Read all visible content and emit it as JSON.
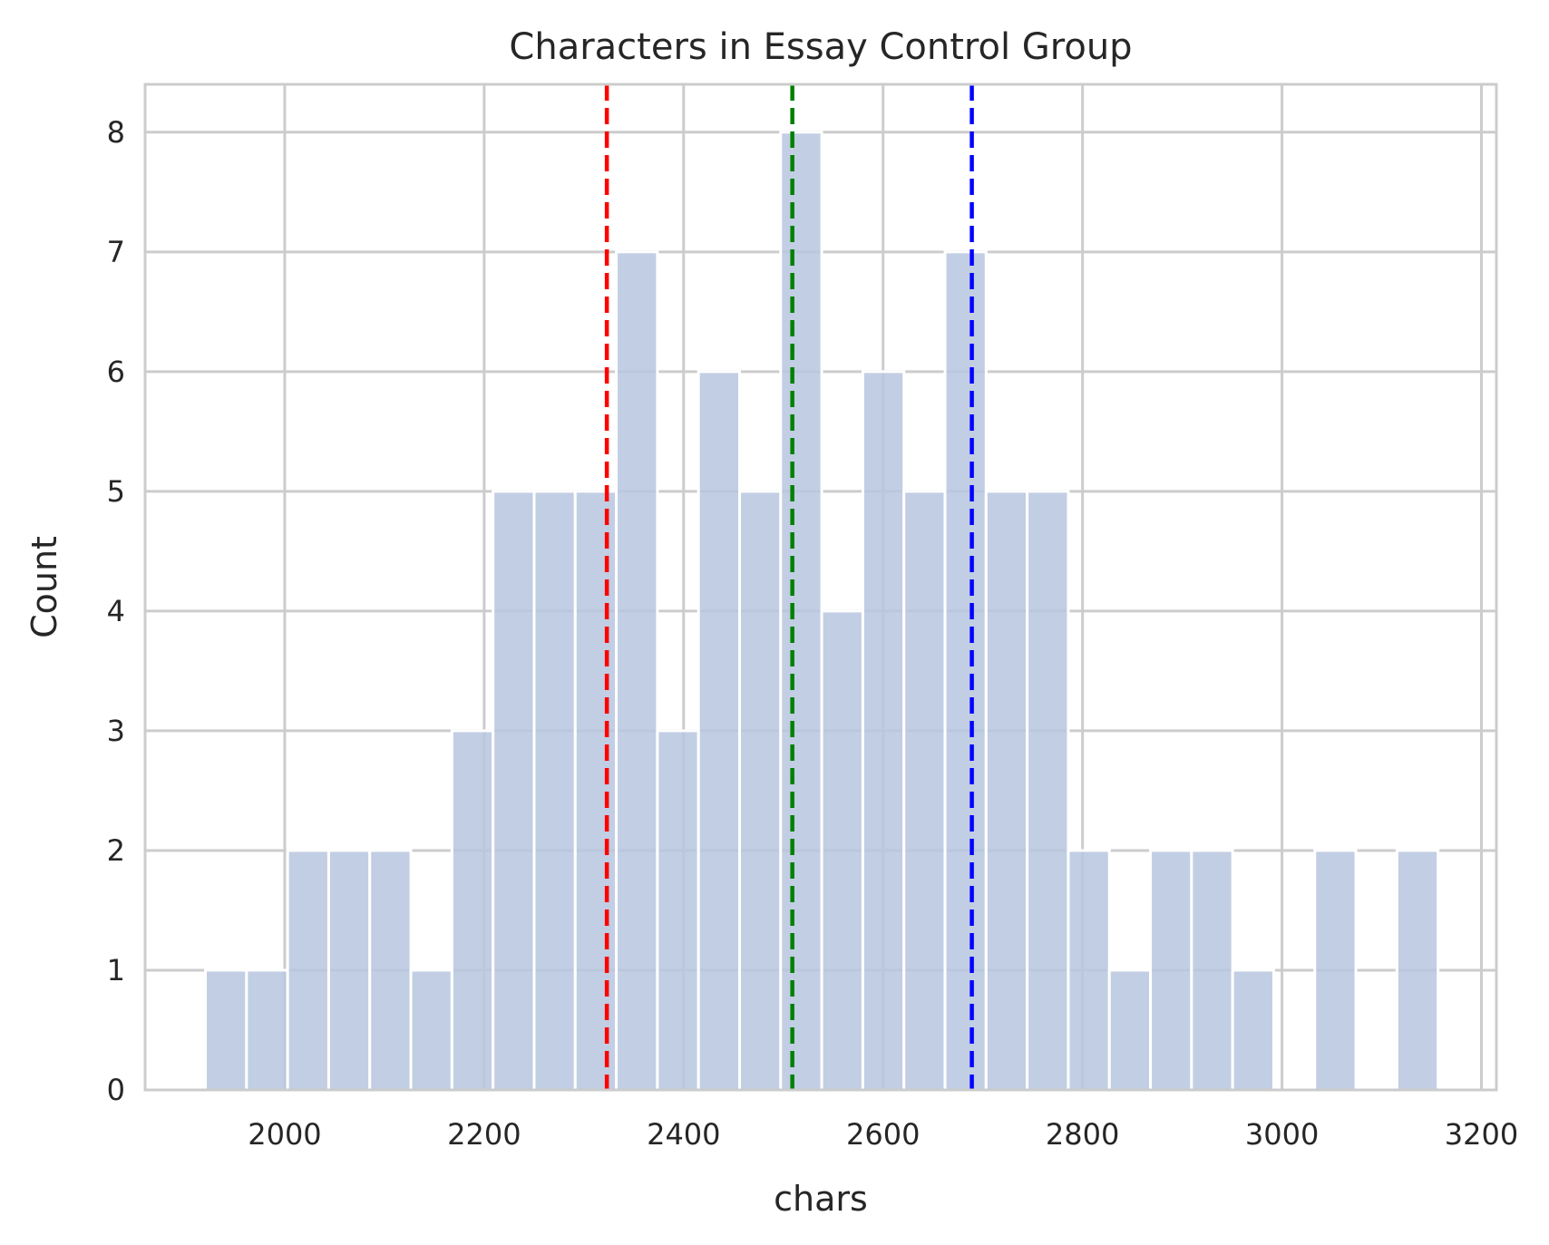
{
  "chart_data": {
    "type": "bar",
    "title": "Characters in Essay Control Group",
    "xlabel": "chars",
    "ylabel": "Count",
    "xlim": [
      1860,
      3215
    ],
    "ylim": [
      0,
      8.4
    ],
    "xticks": [
      2000,
      2200,
      2400,
      2600,
      2800,
      3000,
      3200
    ],
    "yticks": [
      0,
      1,
      2,
      3,
      4,
      5,
      6,
      7,
      8
    ],
    "grid": true,
    "bin_width": 41.2,
    "bins": [
      {
        "start": 1920.5,
        "count": 1
      },
      {
        "start": 1961.7,
        "count": 1
      },
      {
        "start": 2002.9,
        "count": 2
      },
      {
        "start": 2044.1,
        "count": 2
      },
      {
        "start": 2085.3,
        "count": 2
      },
      {
        "start": 2126.5,
        "count": 1
      },
      {
        "start": 2167.7,
        "count": 3
      },
      {
        "start": 2208.9,
        "count": 5
      },
      {
        "start": 2250.1,
        "count": 5
      },
      {
        "start": 2291.3,
        "count": 5
      },
      {
        "start": 2332.5,
        "count": 7
      },
      {
        "start": 2373.7,
        "count": 3
      },
      {
        "start": 2414.9,
        "count": 6
      },
      {
        "start": 2456.1,
        "count": 5
      },
      {
        "start": 2497.3,
        "count": 8
      },
      {
        "start": 2538.5,
        "count": 4
      },
      {
        "start": 2579.7,
        "count": 6
      },
      {
        "start": 2620.9,
        "count": 5
      },
      {
        "start": 2662.1,
        "count": 7
      },
      {
        "start": 2703.3,
        "count": 5
      },
      {
        "start": 2744.5,
        "count": 5
      },
      {
        "start": 2785.7,
        "count": 2
      },
      {
        "start": 2826.9,
        "count": 1
      },
      {
        "start": 2868.1,
        "count": 2
      },
      {
        "start": 2909.3,
        "count": 2
      },
      {
        "start": 2950.5,
        "count": 1
      },
      {
        "start": 2991.7,
        "count": 0
      },
      {
        "start": 3032.9,
        "count": 2
      },
      {
        "start": 3074.1,
        "count": 0
      },
      {
        "start": 3115.3,
        "count": 2
      }
    ],
    "bar_color": "#b7c6df",
    "vlines": [
      {
        "x": 2323,
        "color": "#ff0000",
        "style": "dashed"
      },
      {
        "x": 2509,
        "color": "#008000",
        "style": "dashed"
      },
      {
        "x": 2689,
        "color": "#0000ff",
        "style": "dashed"
      }
    ]
  }
}
